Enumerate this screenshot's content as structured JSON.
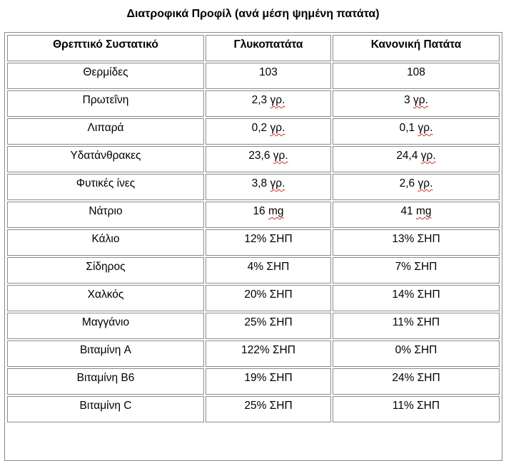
{
  "title": "Διατροφικά Προφίλ (ανά μέση ψημένη πατάτα)",
  "headers": [
    "Θρεπτικό Συστατικό",
    "Γλυκοπατάτα",
    "Κανονική Πατάτα"
  ],
  "rows": [
    {
      "nutrient": "Θερμίδες",
      "sweet": "103",
      "sweet_unit": "",
      "regular": "108",
      "regular_unit": ""
    },
    {
      "nutrient": "Πρωτεΐνη",
      "sweet": "2,3",
      "sweet_unit": "γρ.",
      "regular": "3",
      "regular_unit": "γρ."
    },
    {
      "nutrient": "Λιπαρά",
      "sweet": "0,2",
      "sweet_unit": "γρ.",
      "regular": "0,1",
      "regular_unit": "γρ."
    },
    {
      "nutrient": "Υδατάνθρακες",
      "sweet": "23,6",
      "sweet_unit": "γρ.",
      "regular": "24,4",
      "regular_unit": "γρ."
    },
    {
      "nutrient": "Φυτικές ίνες",
      "sweet": "3,8",
      "sweet_unit": "γρ.",
      "regular": "2,6",
      "regular_unit": "γρ."
    },
    {
      "nutrient": "Νάτριο",
      "sweet": "16",
      "sweet_unit": "mg",
      "regular": "41",
      "regular_unit": "mg"
    },
    {
      "nutrient": "Κάλιο",
      "sweet": "12% ΣΗΠ",
      "sweet_unit": "",
      "regular": "13% ΣΗΠ",
      "regular_unit": ""
    },
    {
      "nutrient": "Σίδηρος",
      "sweet": "4% ΣΗΠ",
      "sweet_unit": "",
      "regular": "7% ΣΗΠ",
      "regular_unit": ""
    },
    {
      "nutrient": "Χαλκός",
      "sweet": "20% ΣΗΠ",
      "sweet_unit": "",
      "regular": "14% ΣΗΠ",
      "regular_unit": ""
    },
    {
      "nutrient": "Μαγγάνιο",
      "sweet": "25% ΣΗΠ",
      "sweet_unit": "",
      "regular": "11% ΣΗΠ",
      "regular_unit": ""
    },
    {
      "nutrient": "Βιταμίνη A",
      "sweet": "122% ΣΗΠ",
      "sweet_unit": "",
      "regular": "0% ΣΗΠ",
      "regular_unit": ""
    },
    {
      "nutrient": "Βιταμίνη B6",
      "sweet": "19% ΣΗΠ",
      "sweet_unit": "",
      "regular": "24% ΣΗΠ",
      "regular_unit": ""
    },
    {
      "nutrient": "Βιταμίνη C",
      "sweet": "25% ΣΗΠ",
      "sweet_unit": "",
      "regular": "11% ΣΗΠ",
      "regular_unit": ""
    }
  ]
}
